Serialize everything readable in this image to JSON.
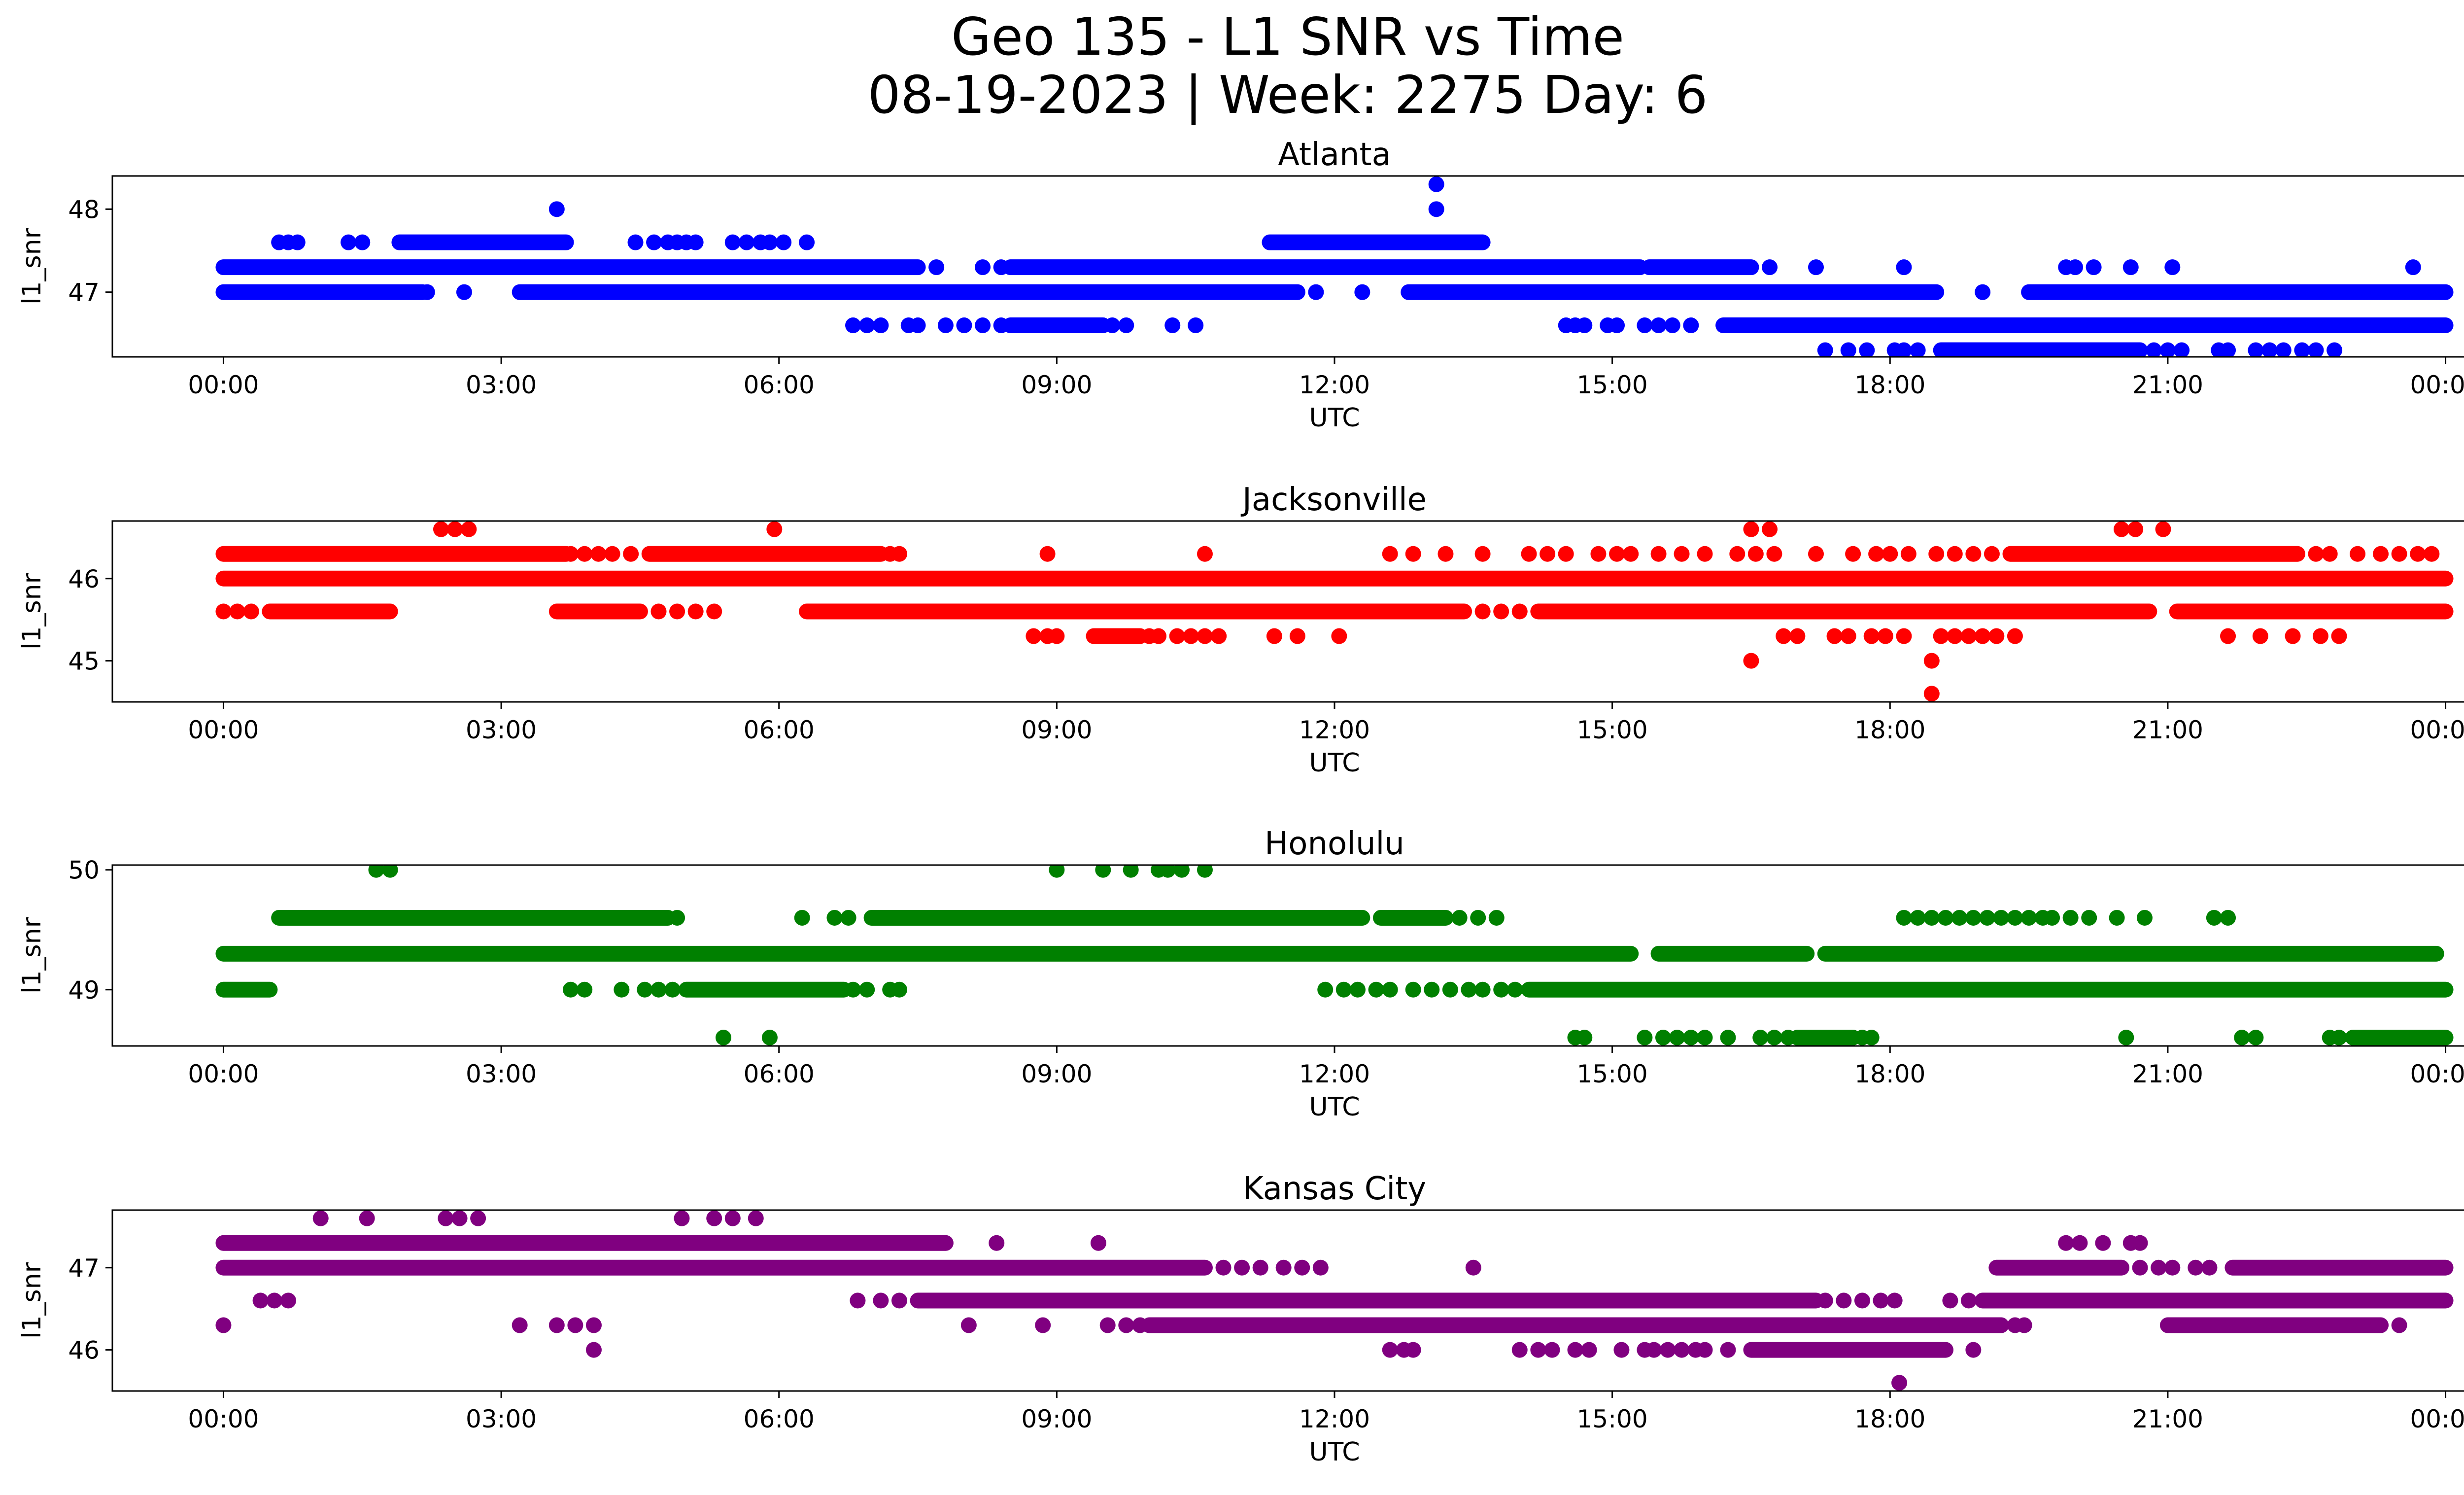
{
  "figure": {
    "title_line1": "Geo 135 - L1 SNR vs Time",
    "title_line2": "08-19-2023 | Week: 2275 Day: 6"
  },
  "chart_data": [
    {
      "type": "scatter",
      "title": "Atlanta",
      "xlabel": "UTC",
      "ylabel": "l1_snr",
      "color": "#0000ff",
      "x_ticks": [
        "00:00",
        "03:00",
        "06:00",
        "09:00",
        "12:00",
        "15:00",
        "18:00",
        "21:00",
        "00:00"
      ],
      "xlim_hours": [
        -1.2,
        25.2
      ],
      "yticks": [
        47,
        48
      ],
      "ylim": [
        46.22,
        48.4
      ],
      "grid": false,
      "series": [
        {
          "y": 47.3,
          "segments": [
            [
              0.0,
              7.5
            ],
            [
              8.5,
              15.3
            ],
            [
              15.4,
              16.5
            ]
          ],
          "points": [
            7.7,
            8.2,
            8.4,
            16.7,
            17.2,
            18.15,
            19.9,
            20.0,
            20.2,
            20.6,
            21.05,
            23.65
          ]
        },
        {
          "y": 47.0,
          "segments": [
            [
              0.0,
              2.15
            ],
            [
              3.2,
              11.6
            ],
            [
              12.8,
              18.5
            ],
            [
              19.5,
              24.0
            ]
          ],
          "points": [
            2.2,
            2.6,
            11.8,
            12.3,
            19.0
          ]
        },
        {
          "y": 47.6,
          "segments": [
            [
              1.9,
              3.7
            ],
            [
              11.3,
              13.6
            ]
          ],
          "points": [
            0.6,
            0.7,
            0.8,
            1.35,
            1.5,
            4.45,
            4.65,
            4.8,
            4.9,
            5.0,
            5.1,
            5.5,
            5.65,
            5.8,
            5.9,
            6.05,
            6.3
          ]
        },
        {
          "y": 46.6,
          "segments": [
            [
              8.5,
              9.5
            ],
            [
              16.2,
              24.0
            ]
          ],
          "points": [
            6.8,
            6.95,
            7.1,
            7.4,
            7.5,
            7.8,
            8.0,
            8.2,
            8.4,
            9.6,
            9.75,
            10.25,
            10.5,
            14.5,
            14.6,
            14.7,
            14.95,
            15.05,
            15.35,
            15.5,
            15.65,
            15.85
          ]
        },
        {
          "y": 46.3,
          "segments": [
            [
              18.55,
              20.7
            ]
          ],
          "points": [
            17.3,
            17.55,
            17.75,
            18.05,
            18.15,
            18.3,
            20.85,
            21.0,
            21.15,
            21.55,
            21.65,
            21.95,
            22.1,
            22.25,
            22.45,
            22.6,
            22.8
          ]
        },
        {
          "y": 48.0,
          "segments": [],
          "points": [
            3.6,
            13.1
          ]
        },
        {
          "y": 48.3,
          "segments": [],
          "points": [
            13.1
          ]
        }
      ]
    },
    {
      "type": "scatter",
      "title": "Jacksonville",
      "xlabel": "UTC",
      "ylabel": "l1_snr",
      "color": "#ff0000",
      "x_ticks": [
        "00:00",
        "03:00",
        "06:00",
        "09:00",
        "12:00",
        "15:00",
        "18:00",
        "21:00",
        "00:00"
      ],
      "xlim_hours": [
        -1.2,
        25.2
      ],
      "yticks": [
        45,
        46
      ],
      "ylim": [
        44.5,
        46.7
      ],
      "grid": false,
      "series": [
        {
          "y": 46.0,
          "segments": [
            [
              0.0,
              24.0
            ]
          ],
          "points": []
        },
        {
          "y": 46.3,
          "segments": [
            [
              0.0,
              3.7
            ],
            [
              4.6,
              7.1
            ],
            [
              19.3,
              22.4
            ]
          ],
          "points": [
            3.75,
            3.9,
            4.05,
            4.2,
            4.4,
            7.2,
            7.3,
            8.9,
            10.6,
            12.6,
            12.85,
            13.2,
            13.6,
            14.1,
            14.3,
            14.5,
            14.85,
            15.05,
            15.2,
            15.5,
            15.75,
            16.0,
            16.35,
            16.55,
            16.75,
            17.2,
            17.6,
            17.85,
            18.0,
            18.2,
            18.5,
            18.7,
            18.9,
            19.1,
            22.6,
            22.75,
            23.05,
            23.3,
            23.5,
            23.7,
            23.85
          ]
        },
        {
          "y": 45.6,
          "segments": [
            [
              0.5,
              1.8
            ],
            [
              3.6,
              4.5
            ],
            [
              6.3,
              13.4
            ],
            [
              14.2,
              20.8
            ],
            [
              21.1,
              24.0
            ]
          ],
          "points": [
            0.0,
            0.15,
            0.3,
            4.7,
            4.9,
            5.1,
            5.3,
            13.6,
            13.8,
            14.0
          ]
        },
        {
          "y": 46.6,
          "segments": [],
          "points": [
            2.35,
            2.5,
            2.65,
            5.95,
            16.5,
            16.7,
            20.5,
            20.65,
            20.95
          ]
        },
        {
          "y": 45.3,
          "segments": [
            [
              9.4,
              9.9
            ]
          ],
          "points": [
            8.75,
            8.9,
            9.0,
            10.0,
            10.1,
            10.3,
            10.45,
            10.6,
            10.75,
            11.35,
            11.6,
            12.05,
            16.85,
            17.0,
            17.4,
            17.55,
            17.8,
            17.95,
            18.15,
            18.55,
            18.7,
            18.85,
            19.0,
            19.15,
            19.35,
            21.65,
            22.0,
            22.35,
            22.65,
            22.85
          ]
        },
        {
          "y": 45.0,
          "segments": [],
          "points": [
            16.5,
            18.45
          ]
        },
        {
          "y": 44.6,
          "segments": [],
          "points": [
            18.45
          ]
        }
      ]
    },
    {
      "type": "scatter",
      "title": "Honolulu",
      "xlabel": "UTC",
      "ylabel": "l1_snr",
      "color": "#008000",
      "x_ticks": [
        "00:00",
        "03:00",
        "06:00",
        "09:00",
        "12:00",
        "15:00",
        "18:00",
        "21:00",
        "00:00"
      ],
      "xlim_hours": [
        -1.2,
        25.2
      ],
      "yticks": [
        49,
        50
      ],
      "ylim": [
        48.53,
        50.04
      ],
      "grid": false,
      "series": [
        {
          "y": 49.3,
          "segments": [
            [
              0.0,
              15.2
            ],
            [
              15.5,
              17.1
            ],
            [
              17.3,
              23.9
            ]
          ],
          "points": []
        },
        {
          "y": 49.0,
          "segments": [
            [
              0.0,
              0.5
            ],
            [
              5.0,
              6.7
            ],
            [
              14.1,
              24.0
            ]
          ],
          "points": [
            3.75,
            3.9,
            4.3,
            4.55,
            4.7,
            4.85,
            6.8,
            6.95,
            7.2,
            7.3,
            11.9,
            12.1,
            12.25,
            12.45,
            12.6,
            12.85,
            13.05,
            13.25,
            13.45,
            13.6,
            13.8,
            13.95
          ]
        },
        {
          "y": 49.6,
          "segments": [
            [
              0.6,
              4.8
            ],
            [
              7.0,
              12.3
            ],
            [
              12.5,
              13.2
            ]
          ],
          "points": [
            4.9,
            6.25,
            6.6,
            6.75,
            13.35,
            13.55,
            13.75,
            18.15,
            18.3,
            18.45,
            18.6,
            18.75,
            18.9,
            19.05,
            19.2,
            19.35,
            19.5,
            19.65,
            19.75,
            19.95,
            20.15,
            20.45,
            20.75,
            21.5,
            21.65
          ]
        },
        {
          "y": 50.0,
          "segments": [],
          "points": [
            1.65,
            1.8,
            9.0,
            9.5,
            9.8,
            10.1,
            10.2,
            10.35,
            10.6
          ]
        },
        {
          "y": 48.6,
          "segments": [
            [
              17.0,
              17.6
            ],
            [
              23.0,
              24.0
            ]
          ],
          "points": [
            5.4,
            5.9,
            14.6,
            14.7,
            15.35,
            15.55,
            15.7,
            15.85,
            16.0,
            16.25,
            16.6,
            16.75,
            16.9,
            17.7,
            17.8,
            20.55,
            21.8,
            21.95,
            22.75,
            22.85
          ]
        }
      ]
    },
    {
      "type": "scatter",
      "title": "Kansas City",
      "xlabel": "UTC",
      "ylabel": "l1_snr",
      "color": "#800080",
      "x_ticks": [
        "00:00",
        "03:00",
        "06:00",
        "09:00",
        "12:00",
        "15:00",
        "18:00",
        "21:00",
        "00:00"
      ],
      "xlim_hours": [
        -1.2,
        25.2
      ],
      "yticks": [
        46,
        47
      ],
      "ylim": [
        45.5,
        47.7
      ],
      "grid": false,
      "series": [
        {
          "y": 47.3,
          "segments": [
            [
              0.0,
              7.8
            ]
          ],
          "points": [
            8.35,
            9.45,
            19.9,
            20.05,
            20.3,
            20.6,
            20.7
          ]
        },
        {
          "y": 47.0,
          "segments": [
            [
              0.0,
              10.6
            ],
            [
              19.15,
              20.5
            ],
            [
              21.7,
              24.0
            ]
          ],
          "points": [
            10.8,
            11.0,
            11.2,
            11.45,
            11.65,
            11.85,
            13.5,
            20.7,
            20.9,
            21.05,
            21.3,
            21.45
          ]
        },
        {
          "y": 46.6,
          "segments": [
            [
              7.5,
              12.0
            ],
            [
              12.0,
              17.2
            ],
            [
              19.0,
              24.0
            ]
          ],
          "points": [
            0.4,
            0.55,
            0.7,
            6.85,
            7.1,
            7.3,
            17.3,
            17.5,
            17.7,
            17.9,
            18.05,
            18.65,
            18.85
          ]
        },
        {
          "y": 46.3,
          "segments": [
            [
              10.0,
              19.2
            ],
            [
              21.0,
              23.3
            ]
          ],
          "points": [
            0.0,
            3.2,
            3.6,
            3.8,
            4.0,
            8.05,
            8.85,
            9.55,
            9.75,
            9.9,
            19.35,
            19.45,
            23.5
          ]
        },
        {
          "y": 46.0,
          "segments": [
            [
              16.5,
              18.6
            ]
          ],
          "points": [
            4.0,
            12.6,
            12.75,
            12.85,
            14.0,
            14.2,
            14.35,
            14.6,
            14.75,
            15.1,
            15.35,
            15.45,
            15.6,
            15.75,
            15.9,
            16.0,
            16.25,
            18.9
          ]
        },
        {
          "y": 47.6,
          "segments": [],
          "points": [
            1.05,
            1.55,
            2.4,
            2.55,
            2.75,
            4.95,
            5.3,
            5.5,
            5.75
          ]
        },
        {
          "y": 45.6,
          "segments": [],
          "points": [
            18.1
          ]
        }
      ]
    }
  ]
}
